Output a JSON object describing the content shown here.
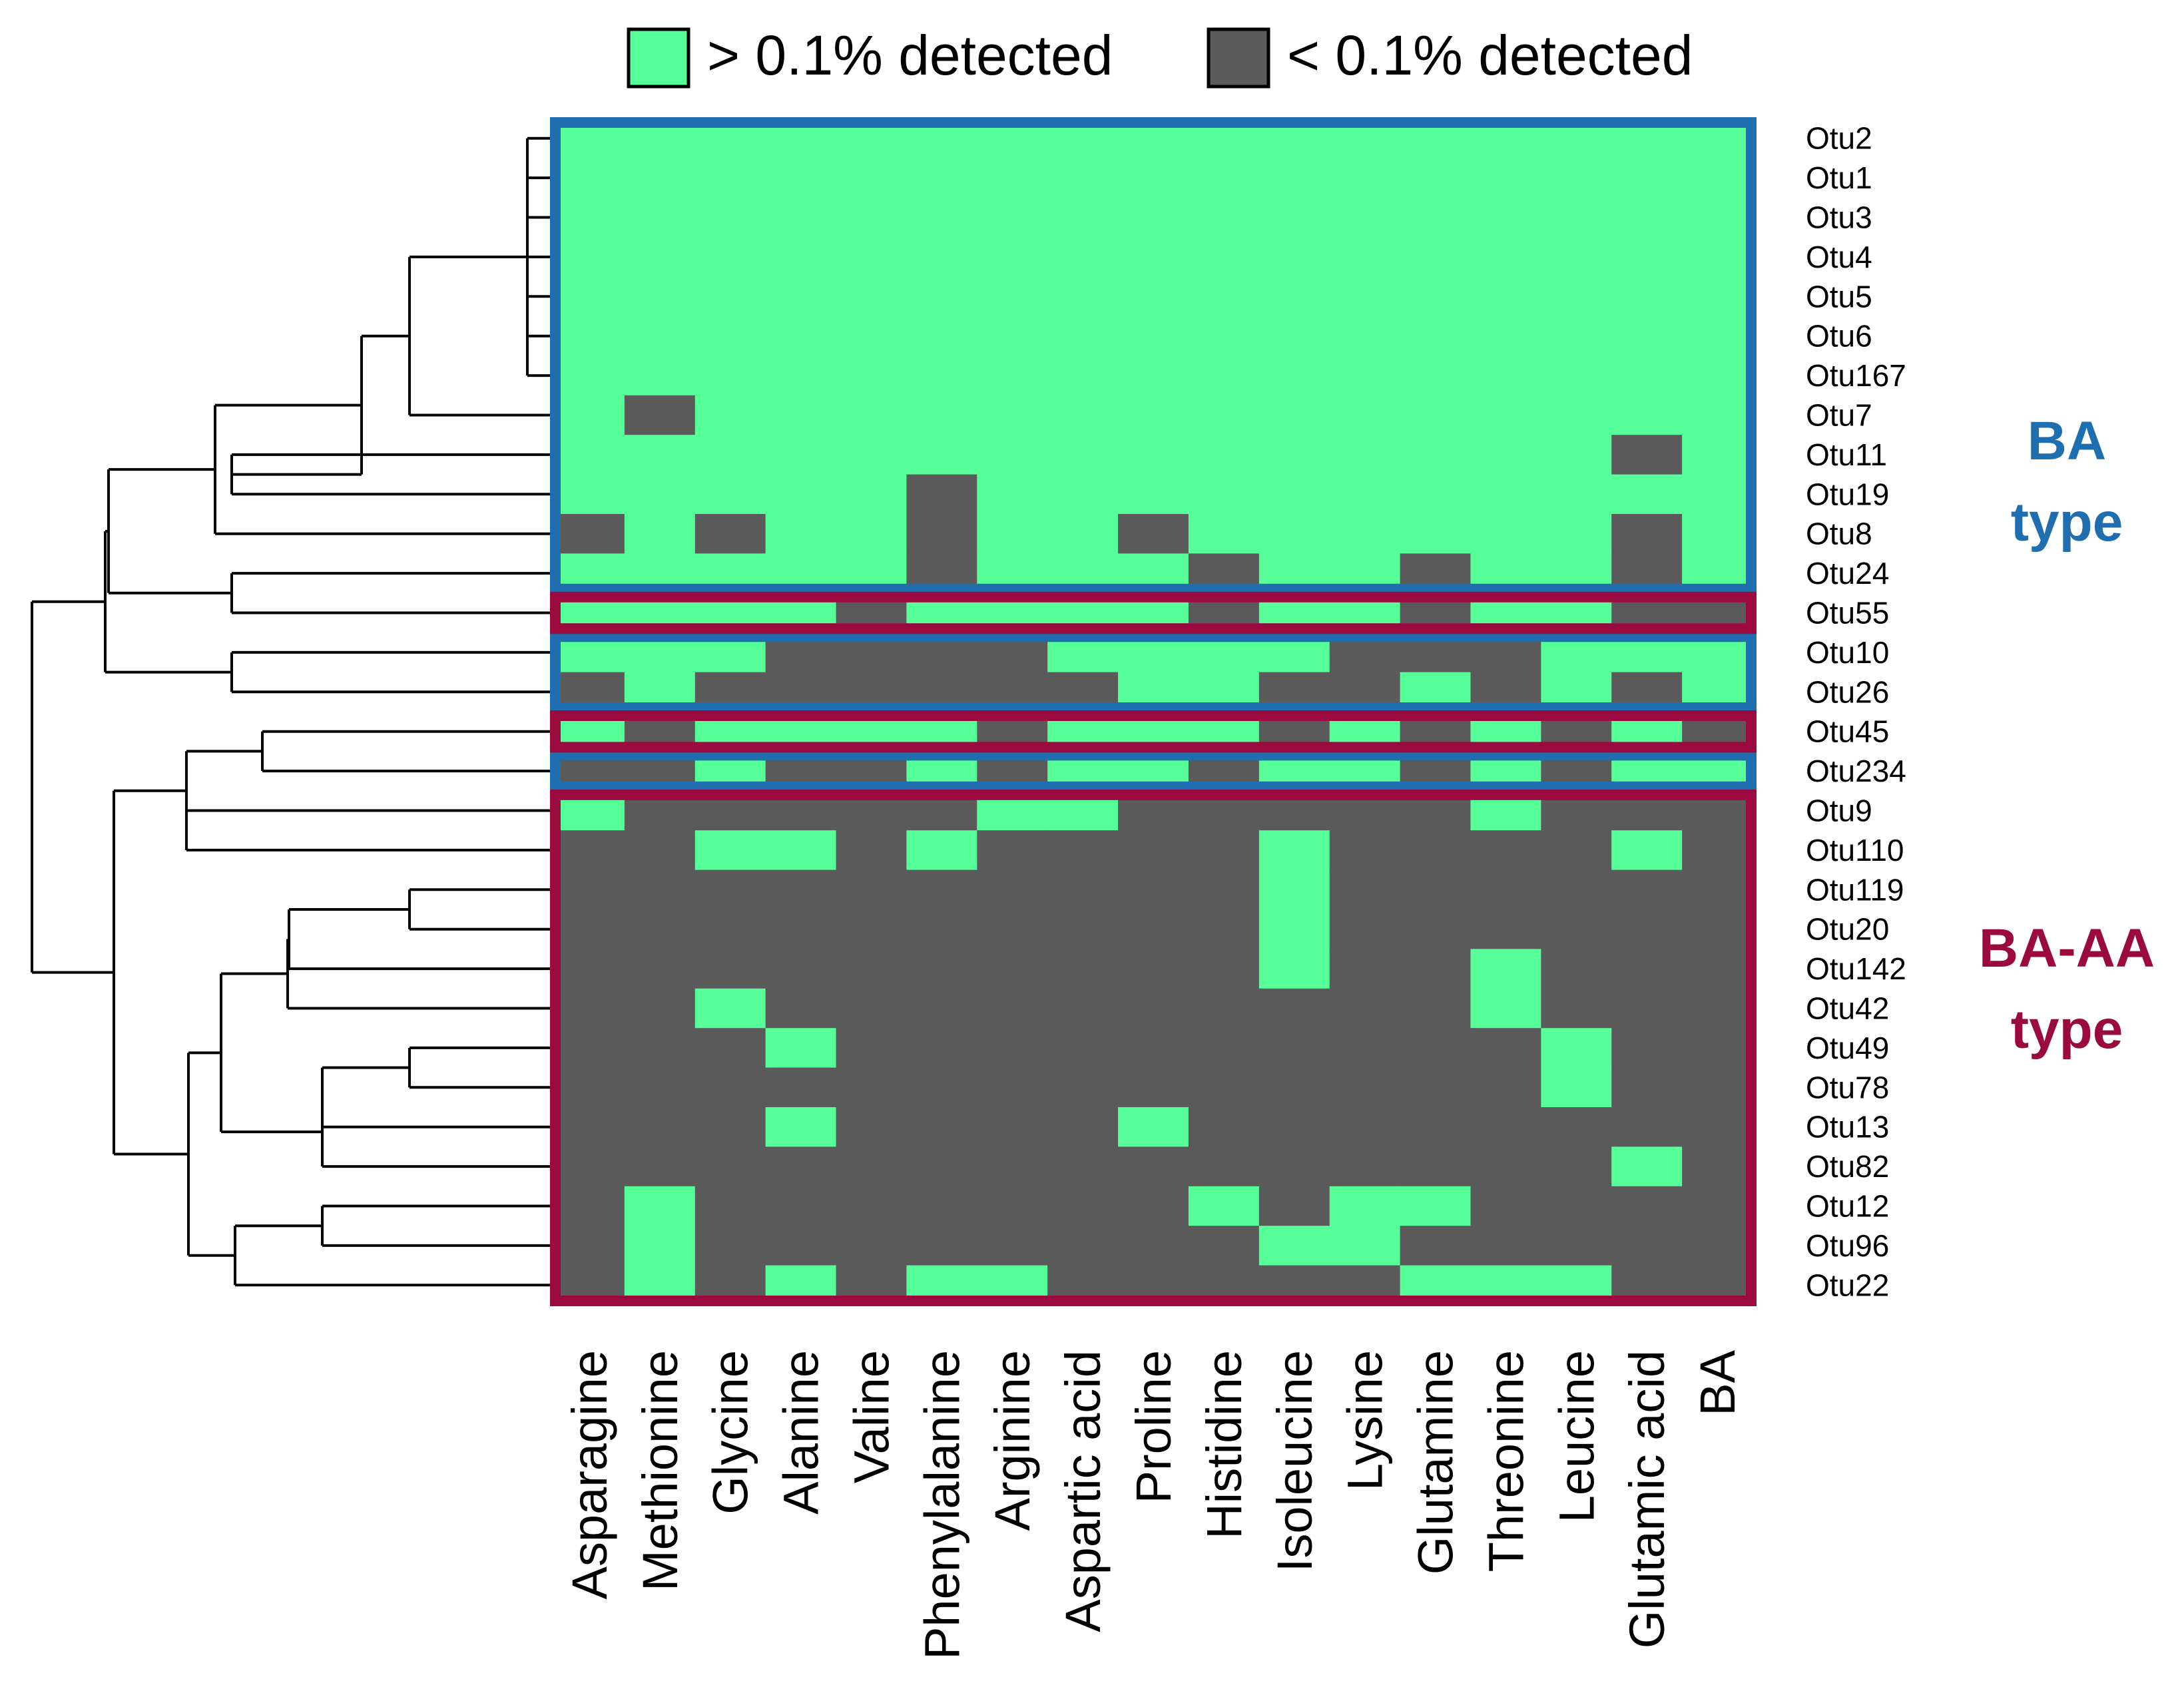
{
  "chart_data": {
    "type": "heatmap",
    "legend": [
      {
        "label": "> 0.1% detected",
        "value": 1,
        "color": "#57FF99"
      },
      {
        "label": "< 0.1% detected",
        "value": 0,
        "color": "#5A5A5A"
      }
    ],
    "columns": [
      "Asparagine",
      "Methionine",
      "Glycine",
      "Alanine",
      "Valine",
      "Phenylalanine",
      "Arginine",
      "Aspartic acid",
      "Proline",
      "Histidine",
      "Isoleucine",
      "Lysine",
      "Glutamine",
      "Threonine",
      "Leucine",
      "Glutamic acid",
      "BA"
    ],
    "rows": [
      {
        "label": "Otu2",
        "values": [
          1,
          1,
          1,
          1,
          1,
          1,
          1,
          1,
          1,
          1,
          1,
          1,
          1,
          1,
          1,
          1,
          1
        ]
      },
      {
        "label": "Otu1",
        "values": [
          1,
          1,
          1,
          1,
          1,
          1,
          1,
          1,
          1,
          1,
          1,
          1,
          1,
          1,
          1,
          1,
          1
        ]
      },
      {
        "label": "Otu3",
        "values": [
          1,
          1,
          1,
          1,
          1,
          1,
          1,
          1,
          1,
          1,
          1,
          1,
          1,
          1,
          1,
          1,
          1
        ]
      },
      {
        "label": "Otu4",
        "values": [
          1,
          1,
          1,
          1,
          1,
          1,
          1,
          1,
          1,
          1,
          1,
          1,
          1,
          1,
          1,
          1,
          1
        ]
      },
      {
        "label": "Otu5",
        "values": [
          1,
          1,
          1,
          1,
          1,
          1,
          1,
          1,
          1,
          1,
          1,
          1,
          1,
          1,
          1,
          1,
          1
        ]
      },
      {
        "label": "Otu6",
        "values": [
          1,
          1,
          1,
          1,
          1,
          1,
          1,
          1,
          1,
          1,
          1,
          1,
          1,
          1,
          1,
          1,
          1
        ]
      },
      {
        "label": "Otu167",
        "values": [
          1,
          1,
          1,
          1,
          1,
          1,
          1,
          1,
          1,
          1,
          1,
          1,
          1,
          1,
          1,
          1,
          1
        ]
      },
      {
        "label": "Otu7",
        "values": [
          1,
          0,
          1,
          1,
          1,
          1,
          1,
          1,
          1,
          1,
          1,
          1,
          1,
          1,
          1,
          1,
          1
        ]
      },
      {
        "label": "Otu11",
        "values": [
          1,
          1,
          1,
          1,
          1,
          1,
          1,
          1,
          1,
          1,
          1,
          1,
          1,
          1,
          1,
          0,
          1
        ]
      },
      {
        "label": "Otu19",
        "values": [
          1,
          1,
          1,
          1,
          1,
          0,
          1,
          1,
          1,
          1,
          1,
          1,
          1,
          1,
          1,
          1,
          1
        ]
      },
      {
        "label": "Otu8",
        "values": [
          0,
          1,
          0,
          1,
          1,
          0,
          1,
          1,
          0,
          1,
          1,
          1,
          1,
          1,
          1,
          0,
          1
        ]
      },
      {
        "label": "Otu24",
        "values": [
          1,
          1,
          1,
          1,
          1,
          0,
          1,
          1,
          1,
          0,
          1,
          1,
          0,
          1,
          1,
          0,
          1
        ]
      },
      {
        "label": "Otu55",
        "values": [
          1,
          1,
          1,
          1,
          0,
          1,
          1,
          1,
          1,
          0,
          1,
          1,
          0,
          1,
          1,
          0,
          0
        ]
      },
      {
        "label": "Otu10",
        "values": [
          1,
          1,
          1,
          0,
          0,
          0,
          0,
          1,
          1,
          1,
          1,
          0,
          0,
          0,
          1,
          1,
          1
        ]
      },
      {
        "label": "Otu26",
        "values": [
          0,
          1,
          0,
          0,
          0,
          0,
          0,
          0,
          1,
          1,
          0,
          0,
          1,
          0,
          1,
          0,
          1
        ]
      },
      {
        "label": "Otu45",
        "values": [
          1,
          0,
          1,
          1,
          1,
          1,
          0,
          1,
          1,
          1,
          0,
          1,
          0,
          1,
          0,
          1,
          0
        ]
      },
      {
        "label": "Otu234",
        "values": [
          0,
          0,
          1,
          0,
          0,
          1,
          0,
          1,
          1,
          0,
          1,
          1,
          0,
          1,
          0,
          1,
          1
        ]
      },
      {
        "label": "Otu9",
        "values": [
          1,
          0,
          0,
          0,
          0,
          0,
          1,
          1,
          0,
          0,
          0,
          0,
          0,
          1,
          0,
          0,
          0
        ]
      },
      {
        "label": "Otu110",
        "values": [
          0,
          0,
          1,
          1,
          0,
          1,
          0,
          0,
          0,
          0,
          1,
          0,
          0,
          0,
          0,
          1,
          0
        ]
      },
      {
        "label": "Otu119",
        "values": [
          0,
          0,
          0,
          0,
          0,
          0,
          0,
          0,
          0,
          0,
          1,
          0,
          0,
          0,
          0,
          0,
          0
        ]
      },
      {
        "label": "Otu20",
        "values": [
          0,
          0,
          0,
          0,
          0,
          0,
          0,
          0,
          0,
          0,
          1,
          0,
          0,
          0,
          0,
          0,
          0
        ]
      },
      {
        "label": "Otu142",
        "values": [
          0,
          0,
          0,
          0,
          0,
          0,
          0,
          0,
          0,
          0,
          1,
          0,
          0,
          1,
          0,
          0,
          0
        ]
      },
      {
        "label": "Otu42",
        "values": [
          0,
          0,
          1,
          0,
          0,
          0,
          0,
          0,
          0,
          0,
          0,
          0,
          0,
          1,
          0,
          0,
          0
        ]
      },
      {
        "label": "Otu49",
        "values": [
          0,
          0,
          0,
          1,
          0,
          0,
          0,
          0,
          0,
          0,
          0,
          0,
          0,
          0,
          1,
          0,
          0
        ]
      },
      {
        "label": "Otu78",
        "values": [
          0,
          0,
          0,
          0,
          0,
          0,
          0,
          0,
          0,
          0,
          0,
          0,
          0,
          0,
          1,
          0,
          0
        ]
      },
      {
        "label": "Otu13",
        "values": [
          0,
          0,
          0,
          1,
          0,
          0,
          0,
          0,
          1,
          0,
          0,
          0,
          0,
          0,
          0,
          0,
          0
        ]
      },
      {
        "label": "Otu82",
        "values": [
          0,
          0,
          0,
          0,
          0,
          0,
          0,
          0,
          0,
          0,
          0,
          0,
          0,
          0,
          0,
          1,
          0
        ]
      },
      {
        "label": "Otu12",
        "values": [
          0,
          1,
          0,
          0,
          0,
          0,
          0,
          0,
          0,
          1,
          0,
          1,
          1,
          0,
          0,
          0,
          0
        ]
      },
      {
        "label": "Otu96",
        "values": [
          0,
          1,
          0,
          0,
          0,
          0,
          0,
          0,
          0,
          0,
          1,
          1,
          0,
          0,
          0,
          0,
          0
        ]
      },
      {
        "label": "Otu22",
        "values": [
          0,
          1,
          0,
          1,
          0,
          1,
          1,
          0,
          0,
          0,
          0,
          0,
          1,
          1,
          1,
          0,
          0
        ]
      }
    ],
    "groups": [
      {
        "name": "BA type",
        "lines": [
          "BA",
          "type"
        ],
        "color": "#1F6FB0",
        "row_ranges": [
          [
            0,
            11
          ],
          [
            13,
            14
          ],
          [
            16,
            16
          ]
        ]
      },
      {
        "name": "BA-AA type",
        "lines": [
          "BA-AA",
          "type"
        ],
        "color": "#9A0A3E",
        "row_ranges": [
          [
            12,
            12
          ],
          [
            15,
            15
          ],
          [
            17,
            29
          ]
        ]
      }
    ],
    "dendrogram": "hierarchical clustering of OTU rows (left side)"
  },
  "colors": {
    "detected": "#57FF99",
    "not_detected": "#5A5A5A",
    "ba_box": "#1F6FB0",
    "baaa_box": "#9A0A3E"
  }
}
